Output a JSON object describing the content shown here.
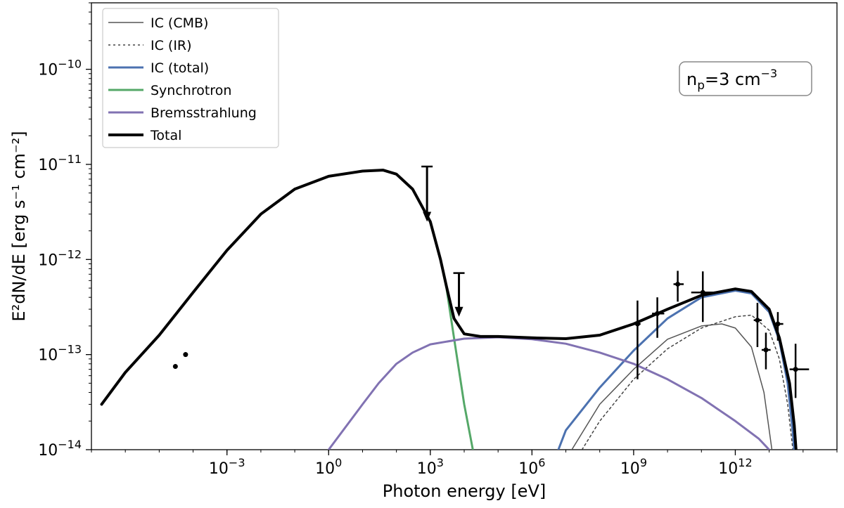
{
  "chart_data": {
    "type": "line",
    "xlabel": "Photon energy [eV]",
    "ylabel": "E²dN/dE [erg s⁻¹ cm⁻²]",
    "x_scale": "log",
    "y_scale": "log",
    "xlim": [
      1e-07,
      1000000000000000.0
    ],
    "ylim": [
      1e-14,
      5e-10
    ],
    "grid": false,
    "legend_position": "top-left",
    "x_ticks": [
      {
        "value": 0.001,
        "base": "10",
        "exp": "−3"
      },
      {
        "value": 1,
        "base": "10",
        "exp": "0"
      },
      {
        "value": 1000,
        "base": "10",
        "exp": "3"
      },
      {
        "value": 1000000,
        "base": "10",
        "exp": "6"
      },
      {
        "value": 1000000000,
        "base": "10",
        "exp": "9"
      },
      {
        "value": 1000000000000,
        "base": "10",
        "exp": "12"
      }
    ],
    "y_ticks": [
      {
        "value": 1e-14,
        "base": "10",
        "exp": "−14"
      },
      {
        "value": 1e-13,
        "base": "10",
        "exp": "−13"
      },
      {
        "value": 1e-12,
        "base": "10",
        "exp": "−12"
      },
      {
        "value": 1e-11,
        "base": "10",
        "exp": "−11"
      },
      {
        "value": 1e-10,
        "base": "10",
        "exp": "−10"
      }
    ],
    "annotation": {
      "text_main": "n",
      "text_sub": "p",
      "text_rest": "=3 cm",
      "text_sup": "−3"
    },
    "series": [
      {
        "name": "IC (CMB)",
        "color": "#555555",
        "width": 1.5,
        "dash": "",
        "points": [
          [
            15000000,
            1e-14
          ],
          [
            100000000,
            3e-14
          ],
          [
            1000000000,
            7e-14
          ],
          [
            10000000000,
            1.45e-13
          ],
          [
            100000000000,
            2e-13
          ],
          [
            400000000000,
            2.1e-13
          ],
          [
            1000000000000,
            1.9e-13
          ],
          [
            3000000000000,
            1.2e-13
          ],
          [
            7000000000000,
            4e-14
          ],
          [
            12000000000000,
            1e-14
          ]
        ]
      },
      {
        "name": "IC (IR)",
        "color": "#444444",
        "width": 1.5,
        "dash": "3,4",
        "points": [
          [
            30000000,
            1e-14
          ],
          [
            100000000,
            2e-14
          ],
          [
            1000000000,
            5.5e-14
          ],
          [
            10000000000,
            1.15e-13
          ],
          [
            100000000000,
            1.9e-13
          ],
          [
            1000000000000,
            2.5e-13
          ],
          [
            3000000000000,
            2.6e-13
          ],
          [
            10000000000000,
            1.8e-13
          ],
          [
            20000000000000,
            9e-14
          ],
          [
            35000000000000,
            3e-14
          ],
          [
            50000000000000,
            1e-14
          ]
        ]
      },
      {
        "name": "IC (total)",
        "color": "#4c72b0",
        "width": 3,
        "dash": "",
        "points": [
          [
            6000000,
            1e-14
          ],
          [
            10000000,
            1.6e-14
          ],
          [
            100000000,
            4.5e-14
          ],
          [
            1000000000,
            1.1e-13
          ],
          [
            10000000000,
            2.4e-13
          ],
          [
            100000000000,
            4e-13
          ],
          [
            1000000000000,
            4.7e-13
          ],
          [
            3000000000000,
            4.4e-13
          ],
          [
            10000000000000,
            2.8e-13
          ],
          [
            20000000000000,
            1.4e-13
          ],
          [
            35000000000000,
            5e-14
          ],
          [
            50000000000000,
            1.5e-14
          ],
          [
            55000000000000,
            1e-14
          ]
        ]
      },
      {
        "name": "Synchrotron",
        "color": "#55a868",
        "width": 3,
        "dash": "",
        "points": [
          [
            2e-07,
            3e-14
          ],
          [
            1e-06,
            6.5e-14
          ],
          [
            1e-05,
            1.6e-13
          ],
          [
            0.0001,
            4.5e-13
          ],
          [
            0.001,
            1.25e-12
          ],
          [
            0.01,
            3e-12
          ],
          [
            0.1,
            5.5e-12
          ],
          [
            1,
            7.5e-12
          ],
          [
            10,
            8.5e-12
          ],
          [
            40,
            8.7e-12
          ],
          [
            100,
            7.9e-12
          ],
          [
            300,
            5.5e-12
          ],
          [
            1000,
            2.5e-12
          ],
          [
            2000,
            1e-12
          ],
          [
            3000,
            5e-13
          ],
          [
            5000,
            1.5e-13
          ],
          [
            10000,
            3e-14
          ],
          [
            18000,
            1e-14
          ]
        ]
      },
      {
        "name": "Bremsstrahlung",
        "color": "#8172b2",
        "width": 3,
        "dash": "",
        "points": [
          [
            1,
            1e-14
          ],
          [
            10,
            3e-14
          ],
          [
            30,
            5e-14
          ],
          [
            100,
            8e-14
          ],
          [
            300,
            1.05e-13
          ],
          [
            1000,
            1.28e-13
          ],
          [
            10000,
            1.47e-13
          ],
          [
            100000,
            1.52e-13
          ],
          [
            1000000,
            1.45e-13
          ],
          [
            10000000,
            1.3e-13
          ],
          [
            100000000,
            1.05e-13
          ],
          [
            1000000000,
            8e-14
          ],
          [
            10000000000,
            5.5e-14
          ],
          [
            100000000000,
            3.5e-14
          ],
          [
            1000000000000,
            2e-14
          ],
          [
            5000000000000,
            1.3e-14
          ],
          [
            10000000000000,
            1e-14
          ]
        ]
      },
      {
        "name": "Total",
        "color": "#000000",
        "width": 4,
        "dash": "",
        "points": [
          [
            2e-07,
            3e-14
          ],
          [
            1e-06,
            6.5e-14
          ],
          [
            1e-05,
            1.6e-13
          ],
          [
            0.0001,
            4.5e-13
          ],
          [
            0.001,
            1.25e-12
          ],
          [
            0.01,
            3e-12
          ],
          [
            0.1,
            5.5e-12
          ],
          [
            1,
            7.5e-12
          ],
          [
            10,
            8.5e-12
          ],
          [
            40,
            8.7e-12
          ],
          [
            100,
            7.9e-12
          ],
          [
            300,
            5.5e-12
          ],
          [
            1000,
            2.5e-12
          ],
          [
            2000,
            1e-12
          ],
          [
            3000,
            5.2e-13
          ],
          [
            5000,
            2.4e-13
          ],
          [
            10000,
            1.65e-13
          ],
          [
            30000,
            1.55e-13
          ],
          [
            100000,
            1.55e-13
          ],
          [
            1000000,
            1.5e-13
          ],
          [
            10000000,
            1.47e-13
          ],
          [
            100000000,
            1.6e-13
          ],
          [
            1000000000,
            2.1e-13
          ],
          [
            10000000000,
            3e-13
          ],
          [
            100000000000,
            4.2e-13
          ],
          [
            1000000000000,
            4.9e-13
          ],
          [
            3000000000000,
            4.6e-13
          ],
          [
            10000000000000,
            3e-13
          ],
          [
            20000000000000,
            1.5e-13
          ],
          [
            40000000000000,
            5e-14
          ],
          [
            55000000000000,
            1.8e-14
          ],
          [
            62000000000000,
            1e-14
          ]
        ]
      }
    ],
    "data_points": [
      {
        "x": 3e-05,
        "y": 7.5e-14,
        "yerr": [
          7.1e-14,
          7.9e-14
        ]
      },
      {
        "x": 6e-05,
        "y": 1e-13,
        "yerr": [
          9.5e-14,
          1.06e-13
        ]
      },
      {
        "x": 1300000000,
        "y": 2.1e-13,
        "xerr": [
          1000000000.0,
          1600000000.0
        ],
        "yerr": [
          5.5e-14,
          3.7e-13
        ]
      },
      {
        "x": 5000000000,
        "y": 2.7e-13,
        "xerr": [
          3500000000.0,
          8000000000.0
        ],
        "yerr": [
          1.5e-13,
          4e-13
        ]
      },
      {
        "x": 20000000000,
        "y": 5.5e-13,
        "xerr": [
          15000000000.0,
          30000000000.0
        ],
        "yerr": [
          3.6e-13,
          7.6e-13
        ]
      },
      {
        "x": 110000000000,
        "y": 4.5e-13,
        "xerr": [
          50000000000.0,
          300000000000.0
        ],
        "yerr": [
          2.2e-13,
          7.5e-13
        ]
      },
      {
        "x": 4500000000000,
        "y": 2.3e-13,
        "xerr": [
          3500000000000.0,
          6000000000000.0
        ],
        "yerr": [
          1.2e-13,
          3.5e-13
        ]
      },
      {
        "x": 8000000000000,
        "y": 1.12e-13,
        "xerr": [
          6000000000000.0,
          11000000000000.0
        ],
        "yerr": [
          7e-14,
          1.7e-13
        ]
      },
      {
        "x": 18000000000000,
        "y": 2.1e-13,
        "xerr": [
          13000000000000.0,
          26000000000000.0
        ],
        "yerr": [
          1.4e-13,
          2.8e-13
        ]
      },
      {
        "x": 60000000000000,
        "y": 7e-14,
        "xerr": [
          40000000000000.0,
          150000000000000.0
        ],
        "yerr": [
          3.5e-14,
          1.3e-13
        ]
      }
    ],
    "upper_limits": [
      {
        "x": 800,
        "y": 9.5e-12,
        "y_arrow_end": 2.5e-12
      },
      {
        "x": 7000,
        "y": 7.2e-13,
        "y_arrow_end": 2.5e-13
      }
    ]
  }
}
